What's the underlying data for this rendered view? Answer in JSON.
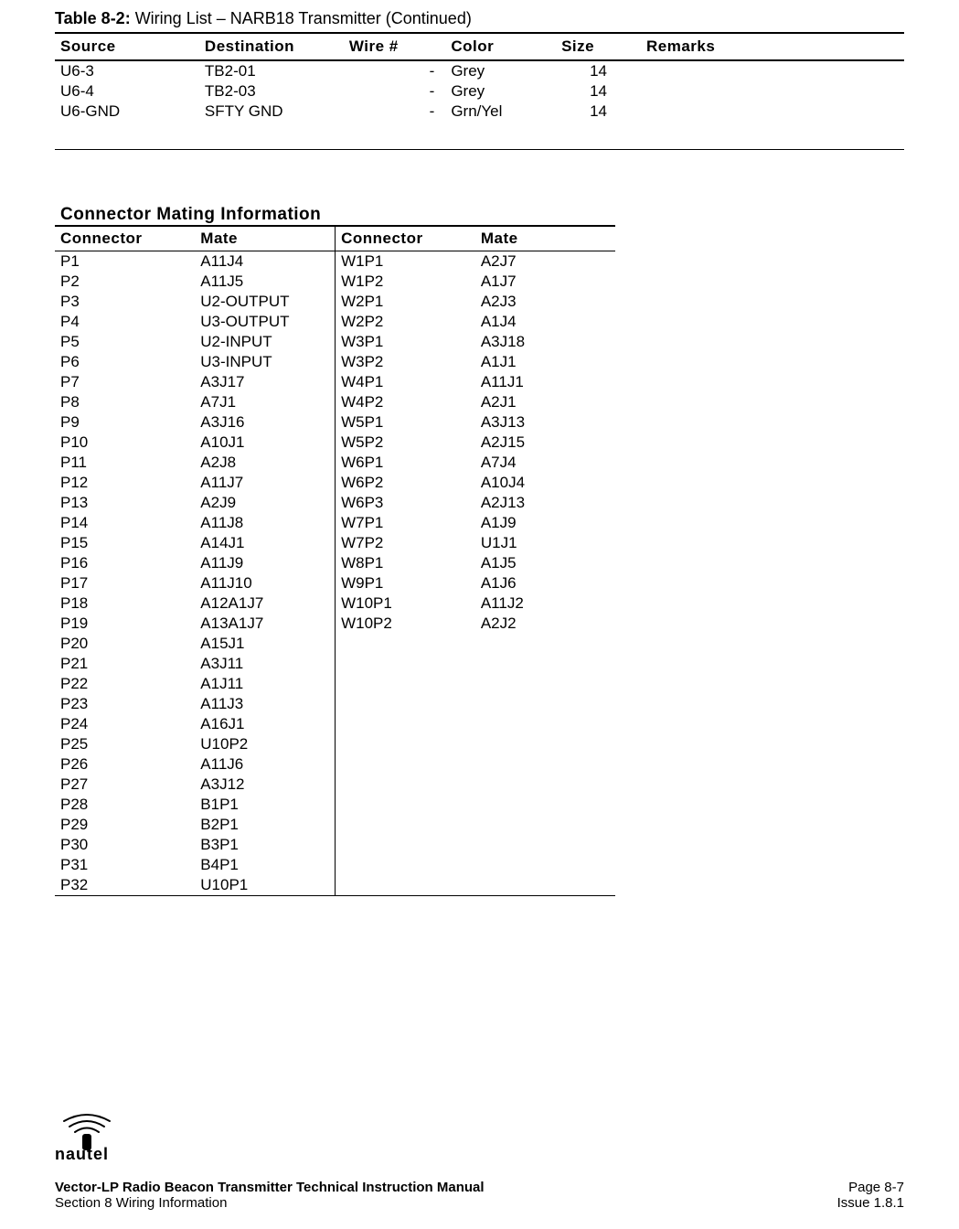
{
  "table82": {
    "caption_prefix": "Table 8-2:",
    "caption_rest": " Wiring List – NARB18 Transmitter (Continued)",
    "headers": [
      "Source",
      "Destination",
      "Wire #",
      "Color",
      "Size",
      "Remarks"
    ],
    "rows": [
      {
        "source": "U6-3",
        "dest": "TB2-01",
        "wire": "-",
        "color": "Grey",
        "size": "14",
        "remarks": ""
      },
      {
        "source": "U6-4",
        "dest": "TB2-03",
        "wire": "-",
        "color": "Grey",
        "size": "14",
        "remarks": ""
      },
      {
        "source": "U6-GND",
        "dest": "SFTY GND",
        "wire": "-",
        "color": "Grn/Yel",
        "size": "14",
        "remarks": ""
      }
    ]
  },
  "mating": {
    "heading": "Connector Mating Information",
    "headers": [
      "Connector",
      "Mate",
      "Connector",
      "Mate"
    ],
    "left": [
      {
        "c": "P1",
        "m": "A11J4"
      },
      {
        "c": "P2",
        "m": "A11J5"
      },
      {
        "c": "P3",
        "m": "U2-OUTPUT"
      },
      {
        "c": "P4",
        "m": "U3-OUTPUT"
      },
      {
        "c": "P5",
        "m": "U2-INPUT"
      },
      {
        "c": "P6",
        "m": "U3-INPUT"
      },
      {
        "c": "P7",
        "m": "A3J17"
      },
      {
        "c": "P8",
        "m": "A7J1"
      },
      {
        "c": "P9",
        "m": "A3J16"
      },
      {
        "c": "P10",
        "m": "A10J1"
      },
      {
        "c": "P11",
        "m": "A2J8"
      },
      {
        "c": "P12",
        "m": "A11J7"
      },
      {
        "c": "P13",
        "m": "A2J9"
      },
      {
        "c": "P14",
        "m": "A11J8"
      },
      {
        "c": "P15",
        "m": "A14J1"
      },
      {
        "c": "P16",
        "m": "A11J9"
      },
      {
        "c": "P17",
        "m": "A11J10"
      },
      {
        "c": "P18",
        "m": "A12A1J7"
      },
      {
        "c": "P19",
        "m": "A13A1J7"
      },
      {
        "c": "P20",
        "m": "A15J1"
      },
      {
        "c": "P21",
        "m": "A3J11"
      },
      {
        "c": "P22",
        "m": "A1J11"
      },
      {
        "c": "P23",
        "m": "A11J3"
      },
      {
        "c": "P24",
        "m": "A16J1"
      },
      {
        "c": "P25",
        "m": "U10P2"
      },
      {
        "c": "P26",
        "m": "A11J6"
      },
      {
        "c": "P27",
        "m": "A3J12"
      },
      {
        "c": "P28",
        "m": "B1P1"
      },
      {
        "c": "P29",
        "m": "B2P1"
      },
      {
        "c": "P30",
        "m": "B3P1"
      },
      {
        "c": "P31",
        "m": "B4P1"
      },
      {
        "c": "P32",
        "m": "U10P1"
      }
    ],
    "right": [
      {
        "c": "W1P1",
        "m": "A2J7"
      },
      {
        "c": "W1P2",
        "m": "A1J7"
      },
      {
        "c": "W2P1",
        "m": "A2J3"
      },
      {
        "c": "W2P2",
        "m": "A1J4"
      },
      {
        "c": "W3P1",
        "m": "A3J18"
      },
      {
        "c": "W3P2",
        "m": "A1J1"
      },
      {
        "c": "W4P1",
        "m": "A11J1"
      },
      {
        "c": "W4P2",
        "m": "A2J1"
      },
      {
        "c": "W5P1",
        "m": "A3J13"
      },
      {
        "c": "W5P2",
        "m": "A2J15"
      },
      {
        "c": "W6P1",
        "m": "A7J4"
      },
      {
        "c": "W6P2",
        "m": "A10J4"
      },
      {
        "c": "W6P3",
        "m": "A2J13"
      },
      {
        "c": "W7P1",
        "m": "A1J9"
      },
      {
        "c": "W7P2",
        "m": "U1J1"
      },
      {
        "c": "W8P1",
        "m": "A1J5"
      },
      {
        "c": "W9P1",
        "m": "A1J6"
      },
      {
        "c": "W10P1",
        "m": "A11J2"
      },
      {
        "c": "W10P2",
        "m": "A2J2"
      }
    ]
  },
  "footer": {
    "manual_title": "Vector-LP Radio Beacon Transmitter Technical Instruction Manual",
    "page": "Page 8-7",
    "section": "Section 8 Wiring Information",
    "issue": "Issue 1.8.1",
    "logo_text": "nautel"
  }
}
